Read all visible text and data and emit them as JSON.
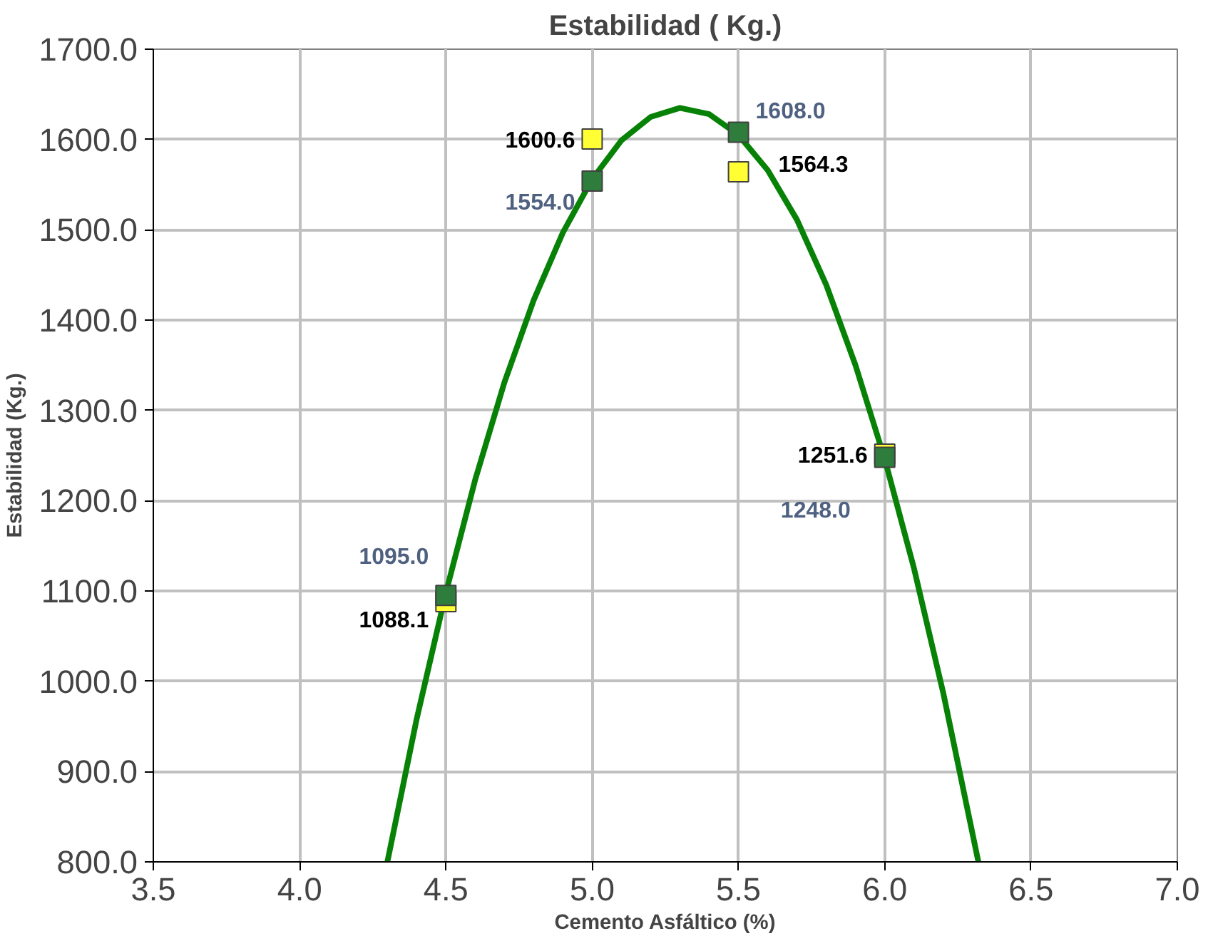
{
  "chart_data": {
    "type": "scatter",
    "title": "Estabilidad ( Kg.)",
    "xlabel": "Cemento Asfáltico (%)",
    "ylabel": "Estabilidad (Kg.)",
    "marker": "square",
    "grid": true,
    "xlim": [
      3.5,
      7.0
    ],
    "ylim": [
      800,
      1700
    ],
    "xticks": [
      {
        "value": 3.5,
        "label": "3.5"
      },
      {
        "value": 4.0,
        "label": "4.0"
      },
      {
        "value": 4.5,
        "label": "4.5"
      },
      {
        "value": 5.0,
        "label": "5.0"
      },
      {
        "value": 5.5,
        "label": "5.5"
      },
      {
        "value": 6.0,
        "label": "6.0"
      },
      {
        "value": 6.5,
        "label": "6.5"
      },
      {
        "value": 7.0,
        "label": "7.0"
      }
    ],
    "yticks": [
      {
        "value": 800,
        "label": "800.0"
      },
      {
        "value": 900,
        "label": "900.0"
      },
      {
        "value": 1000,
        "label": "1000.0"
      },
      {
        "value": 1100,
        "label": "1100.0"
      },
      {
        "value": 1200,
        "label": "1200.0"
      },
      {
        "value": 1300,
        "label": "1300.0"
      },
      {
        "value": 1400,
        "label": "1400.0"
      },
      {
        "value": 1500,
        "label": "1500.0"
      },
      {
        "value": 1600,
        "label": "1600.0"
      },
      {
        "value": 1700,
        "label": "1700.0"
      }
    ],
    "series": [
      {
        "type": "line",
        "marker": "none",
        "color": "#078207",
        "x": [
          4.3,
          4.4,
          4.5,
          4.6,
          4.7,
          4.8,
          4.9,
          5.0,
          5.1,
          5.2,
          5.3,
          5.4,
          5.5,
          5.6,
          5.7,
          5.8,
          5.9,
          6.0,
          6.1,
          6.2,
          6.32
        ],
        "values": [
          800,
          958,
          1098,
          1223,
          1331,
          1422,
          1497,
          1556,
          1599,
          1625,
          1635,
          1628,
          1605,
          1566,
          1511,
          1439,
          1350,
          1246,
          1125,
          987,
          800
        ]
      },
      {
        "color": "#ffff33",
        "x": [
          4.5,
          5.0,
          5.5,
          6.0
        ],
        "values": [
          1088.1,
          1600.6,
          1564.3,
          1251.6
        ],
        "value_labels": [
          "1088.1",
          "1600.6",
          "1564.3",
          "1251.6"
        ]
      },
      {
        "color": "#2f7d3c",
        "x": [
          4.5,
          5.0,
          5.5,
          6.0
        ],
        "values": [
          1095.0,
          1554.0,
          1608.0,
          1248.0
        ],
        "value_labels": [
          "1095.0",
          "1554.0",
          "1608.0",
          "1248.0"
        ]
      }
    ]
  }
}
